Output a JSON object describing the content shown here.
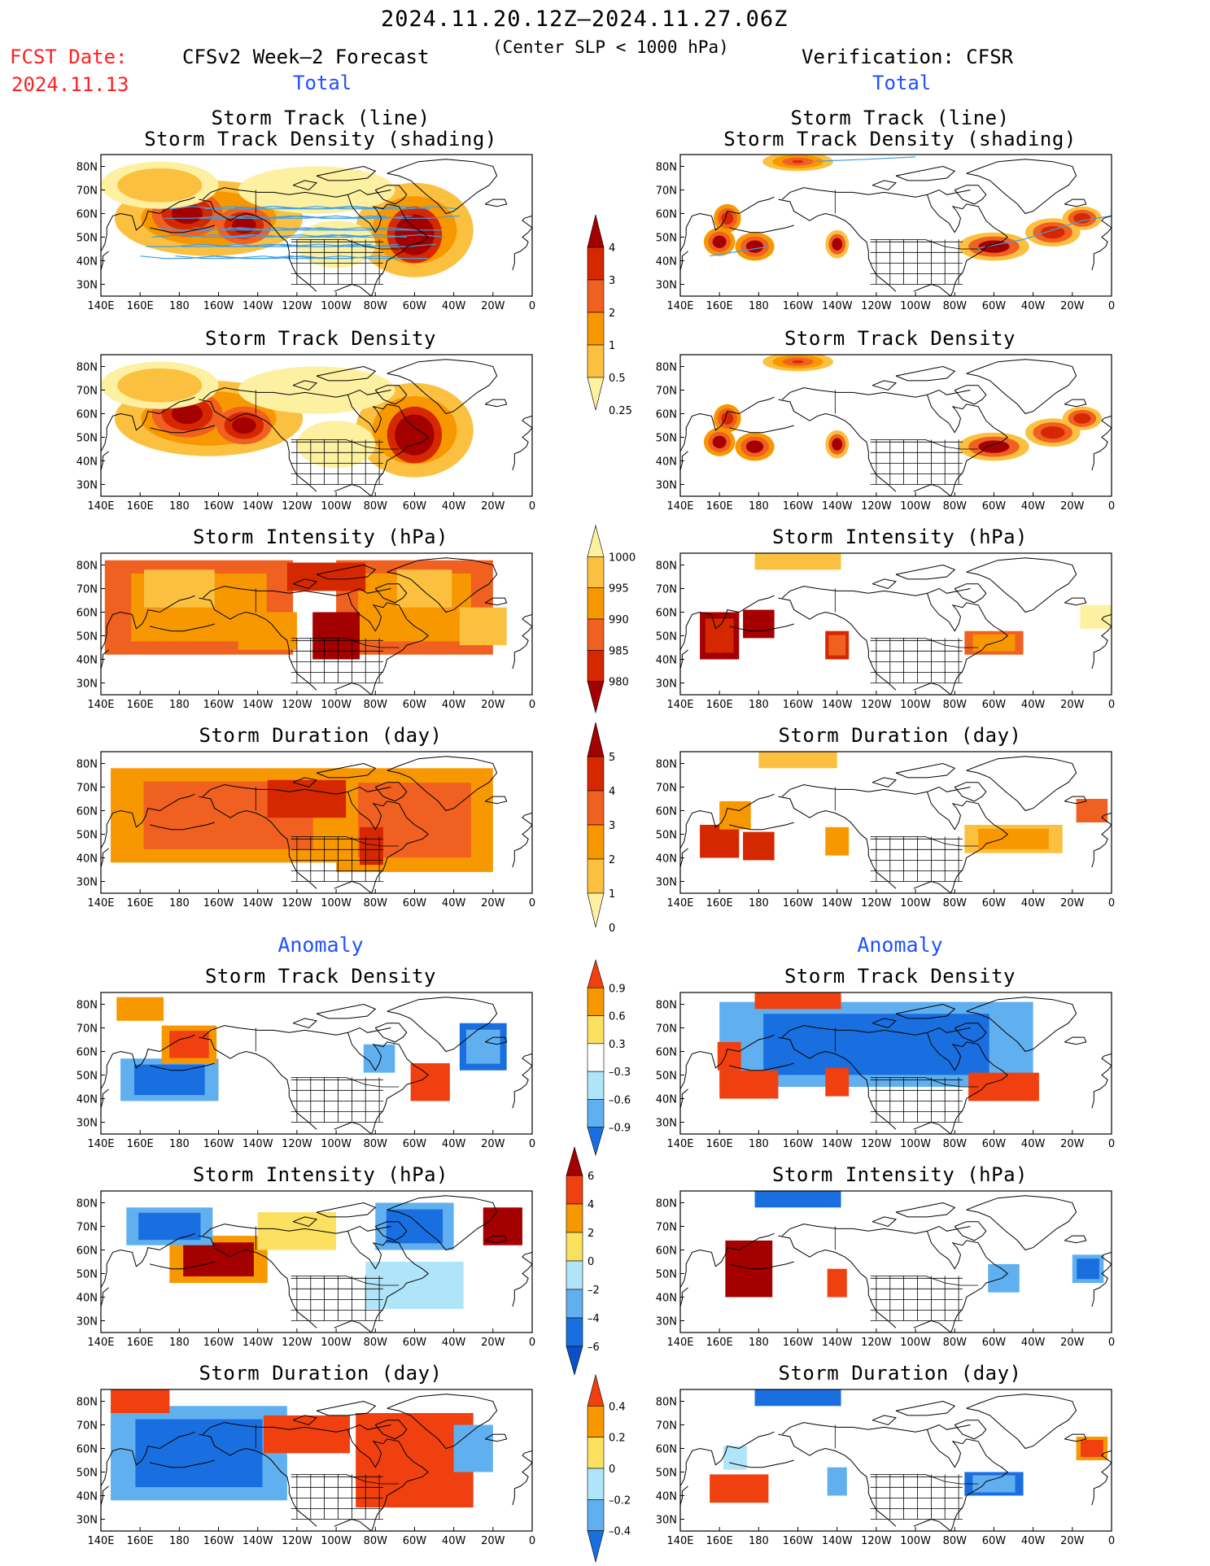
{
  "header": {
    "title": "2024.11.20.12Z–2024.11.27.06Z",
    "subtitle": "(Center SLP < 1000 hPa)",
    "fcst_label": "FCST Date:",
    "fcst_date": "2024.11.13",
    "left_label": "CFSv2 Week–2 Forecast",
    "right_label": "Verification: CFSR"
  },
  "sections": {
    "total": "Total",
    "anomaly": "Anomaly"
  },
  "panel_titles": {
    "track_line": "Storm Track (line)",
    "track_shading": "Storm Track Density (shading)",
    "density": "Storm Track Density",
    "intensity": "Storm Intensity (hPa)",
    "duration": "Storm Duration (day)"
  },
  "axes": {
    "lon_labels": [
      "140E",
      "160E",
      "180",
      "160W",
      "140W",
      "120W",
      "100W",
      "80W",
      "60W",
      "40W",
      "20W",
      "0"
    ],
    "lat_labels": [
      "80N",
      "70N",
      "60N",
      "50N",
      "40N",
      "30N"
    ]
  },
  "colorbars": {
    "density_total": {
      "labels": [
        "4",
        "3",
        "2",
        "1",
        "0.5",
        "0.25"
      ],
      "colors": [
        "#a50000",
        "#d62800",
        "#f06020",
        "#f89800",
        "#fcc040",
        "#fdf0a0"
      ]
    },
    "intensity_total": {
      "labels": [
        "1000",
        "995",
        "990",
        "985",
        "980"
      ],
      "colors": [
        "#fdf0a0",
        "#fcc040",
        "#f89800",
        "#f06020",
        "#d62800",
        "#a50000"
      ]
    },
    "duration_total": {
      "labels": [
        "5",
        "4",
        "3",
        "2",
        "1",
        "0"
      ],
      "colors": [
        "#a50000",
        "#d62800",
        "#f06020",
        "#f89800",
        "#fcc040",
        "#fdf0a0"
      ]
    },
    "density_anom": {
      "labels": [
        "0.9",
        "0.6",
        "0.3",
        "–0.3",
        "–0.6",
        "–0.9"
      ],
      "colors": [
        "#f04010",
        "#f89800",
        "#fce060",
        "#ffffff",
        "#b0e4f8",
        "#60b0f0",
        "#1a6fe0"
      ]
    },
    "intensity_anom": {
      "labels": [
        "6",
        "4",
        "2",
        "0",
        "–2",
        "–4",
        "–6"
      ],
      "colors": [
        "#a50000",
        "#f04010",
        "#f89800",
        "#fce060",
        "#b0e4f8",
        "#60b0f0",
        "#1a6fe0",
        "#0a50c8"
      ]
    },
    "duration_anom": {
      "labels": [
        "0.4",
        "0.2",
        "0",
        "–0.2",
        "–0.4"
      ],
      "colors": [
        "#f04010",
        "#f89800",
        "#fce060",
        "#b0e4f8",
        "#60b0f0",
        "#1a6fe0"
      ]
    }
  },
  "palette": {
    "land": "#000000",
    "track_line": "#3fa0e8"
  }
}
